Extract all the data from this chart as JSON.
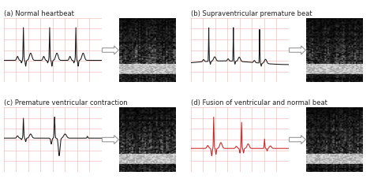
{
  "title_a": "(a) Normal heartbeat",
  "title_b": "(b) Supraventricular premature beat",
  "title_c": "(c) Premature ventricular contraction",
  "title_d": "(d) Fusion of ventricular and normal beat",
  "bg_color": "#ffffff",
  "grid_color": "#f0b0b0",
  "ecg_color_a": "#1a1a1a",
  "ecg_color_b": "#1a1a1a",
  "ecg_color_c": "#1a1a1a",
  "ecg_color_d": "#cc2222",
  "title_fontsize": 6.0,
  "arrow_color": "#dddddd",
  "arrow_edge": "#aaaaaa"
}
